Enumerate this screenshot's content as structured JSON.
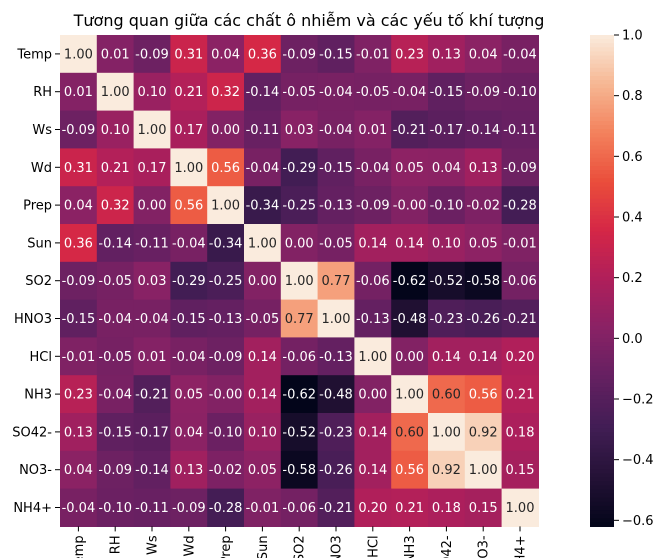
{
  "chart_data": {
    "type": "heatmap",
    "title": "Tương quan giữa các chất ô nhiễm và các yếu tố khí tượng",
    "xlabel": "",
    "ylabel": "",
    "variables": [
      "Temp",
      "RH",
      "Ws",
      "Wd",
      "Prep",
      "Sun",
      "SO2",
      "HNO3",
      "HCl",
      "NH3",
      "SO42-",
      "NO3-",
      "NH4+"
    ],
    "matrix": [
      [
        1.0,
        0.01,
        -0.09,
        0.31,
        0.04,
        0.36,
        -0.09,
        -0.15,
        -0.01,
        0.23,
        0.13,
        0.04,
        -0.04
      ],
      [
        0.01,
        1.0,
        0.1,
        0.21,
        0.32,
        -0.14,
        -0.05,
        -0.04,
        -0.05,
        -0.04,
        -0.15,
        -0.09,
        -0.1
      ],
      [
        -0.09,
        0.1,
        1.0,
        0.17,
        0.0,
        -0.11,
        0.03,
        -0.04,
        0.01,
        -0.21,
        -0.17,
        -0.14,
        -0.11
      ],
      [
        0.31,
        0.21,
        0.17,
        1.0,
        0.56,
        -0.04,
        -0.29,
        -0.15,
        -0.04,
        0.05,
        0.04,
        0.13,
        -0.09
      ],
      [
        0.04,
        0.32,
        0.0,
        0.56,
        1.0,
        -0.34,
        -0.25,
        -0.13,
        -0.09,
        -0.0,
        -0.1,
        -0.02,
        -0.28
      ],
      [
        0.36,
        -0.14,
        -0.11,
        -0.04,
        -0.34,
        1.0,
        0.0,
        -0.05,
        0.14,
        0.14,
        0.1,
        0.05,
        -0.01
      ],
      [
        -0.09,
        -0.05,
        0.03,
        -0.29,
        -0.25,
        0.0,
        1.0,
        0.77,
        -0.06,
        -0.62,
        -0.52,
        -0.58,
        -0.06
      ],
      [
        -0.15,
        -0.04,
        -0.04,
        -0.15,
        -0.13,
        -0.05,
        0.77,
        1.0,
        -0.13,
        -0.48,
        -0.23,
        -0.26,
        -0.21
      ],
      [
        -0.01,
        -0.05,
        0.01,
        -0.04,
        -0.09,
        0.14,
        -0.06,
        -0.13,
        1.0,
        0.0,
        0.14,
        0.14,
        0.2
      ],
      [
        0.23,
        -0.04,
        -0.21,
        0.05,
        -0.0,
        0.14,
        -0.62,
        -0.48,
        0.0,
        1.0,
        0.6,
        0.56,
        0.21
      ],
      [
        0.13,
        -0.15,
        -0.17,
        0.04,
        -0.1,
        0.1,
        -0.52,
        -0.23,
        0.14,
        0.6,
        1.0,
        0.92,
        0.18
      ],
      [
        0.04,
        -0.09,
        -0.14,
        0.13,
        -0.02,
        0.05,
        -0.58,
        -0.26,
        0.14,
        0.56,
        0.92,
        1.0,
        0.15
      ],
      [
        -0.04,
        -0.1,
        -0.11,
        -0.09,
        -0.28,
        -0.01,
        -0.06,
        -0.21,
        0.2,
        0.21,
        0.18,
        0.15,
        1.0
      ]
    ],
    "value_format": "0.00",
    "colormap": "rocket",
    "color_range": [
      -0.62,
      1.0
    ],
    "colorbar_ticks": [
      1.0,
      0.8,
      0.6,
      0.4,
      0.2,
      0.0,
      -0.2,
      -0.4,
      -0.6
    ],
    "colorbar_tick_labels": [
      "1.0",
      "0.8",
      "0.6",
      "0.4",
      "0.2",
      "0.0",
      "−0.2",
      "−0.4",
      "−0.6"
    ],
    "grid": false,
    "legend": "colorbar-right"
  }
}
